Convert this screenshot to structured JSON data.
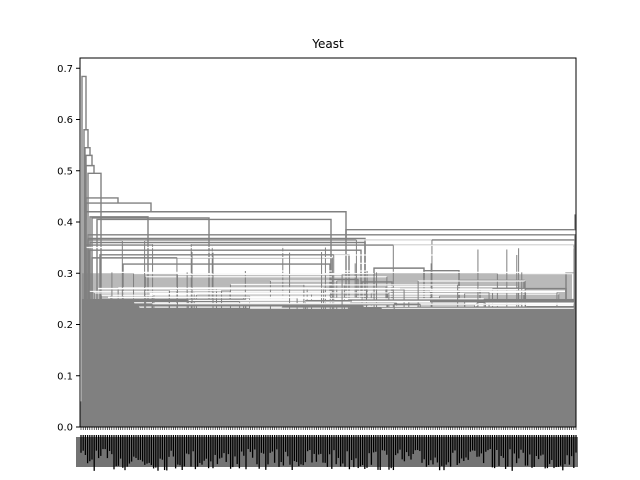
{
  "chart_data": {
    "type": "dendrogram",
    "title": "Yeast",
    "xlabel": "",
    "ylabel": "",
    "ylim": [
      0,
      0.72
    ],
    "yticks": [
      0.0,
      0.1,
      0.2,
      0.3,
      0.4,
      0.5,
      0.6,
      0.7
    ],
    "ytick_labels": [
      "0.0",
      "0.1",
      "0.2",
      "0.3",
      "0.4",
      "0.5",
      "0.6",
      "0.7"
    ],
    "leaf_count_approx": 1500,
    "leaf_labels_legible": false,
    "grid": false,
    "link_color": "#808080",
    "major_merge_heights": [
      0.684,
      0.58,
      0.545,
      0.53,
      0.51,
      0.495,
      0.447,
      0.437,
      0.42,
      0.415,
      0.41,
      0.405,
      0.385,
      0.375,
      0.37,
      0.365,
      0.36,
      0.355,
      0.345,
      0.335,
      0.33,
      0.31,
      0.305,
      0.3,
      0.295,
      0.285,
      0.28,
      0.275,
      0.27,
      0.26,
      0.255,
      0.25,
      0.24
    ],
    "bulk_merge_height_max": 0.25
  },
  "colors": {
    "link": "#808080",
    "axis": "#000000",
    "background": "#ffffff"
  }
}
